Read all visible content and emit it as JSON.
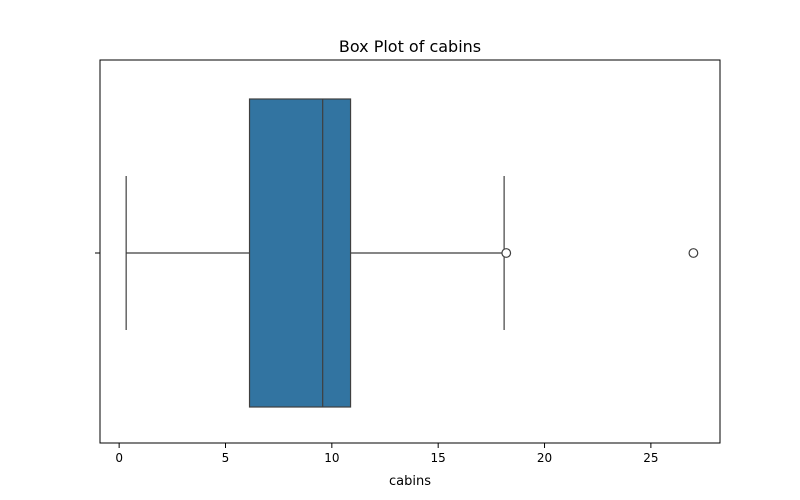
{
  "chart_data": {
    "type": "box",
    "title": "Box Plot of cabins",
    "xlabel": "cabins",
    "ylabel": "",
    "xlim": [
      -0.9,
      28.25
    ],
    "xticks": [
      0,
      5,
      10,
      15,
      20,
      25
    ],
    "xtick_labels": [
      "0",
      "5",
      "10",
      "15",
      "20",
      "25"
    ],
    "box": {
      "whisker_low": 0.33,
      "q1": 6.13,
      "median": 9.57,
      "q3": 10.88,
      "whisker_high": 18.1,
      "outliers": [
        18.2,
        27.0
      ]
    },
    "grid": false,
    "colors": {
      "box_fill": "#3274a1",
      "line": "#3f3f3f",
      "outlier_fill": "#ffffff"
    }
  }
}
